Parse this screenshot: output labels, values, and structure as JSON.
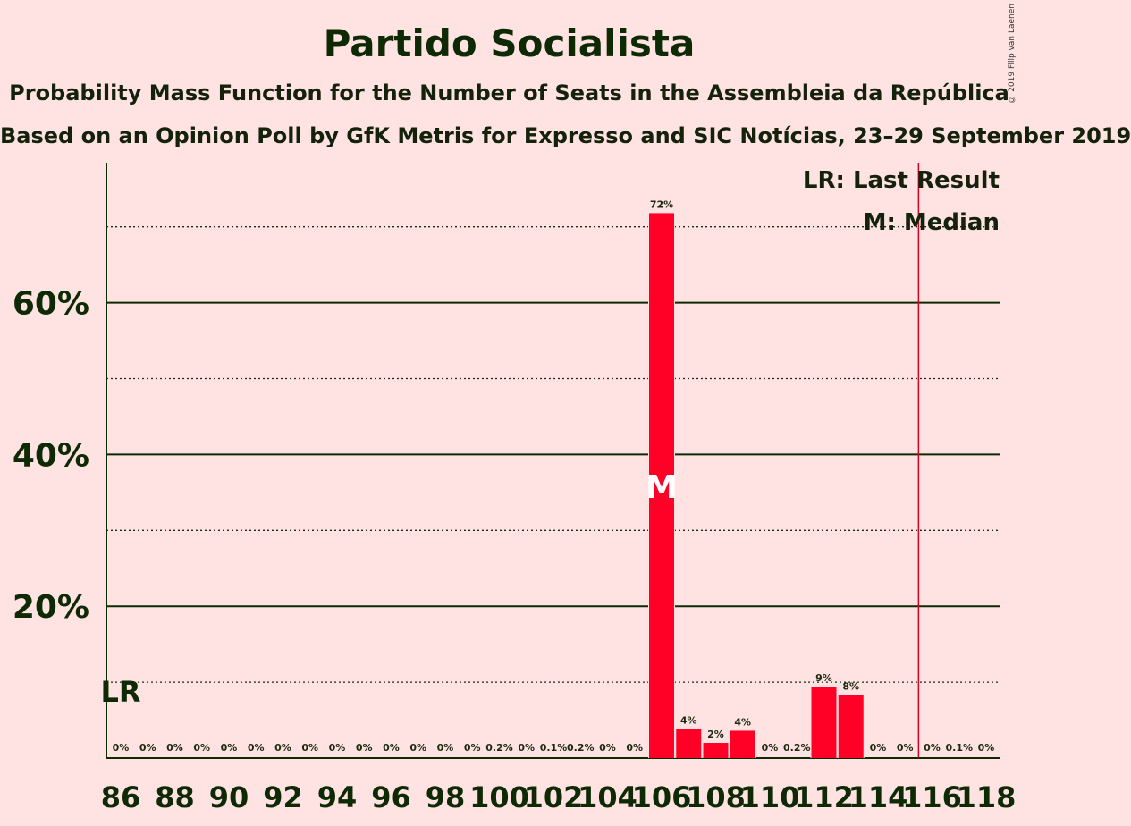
{
  "title": "Partido Socialista",
  "subtitle": "Probability Mass Function for the Number of Seats in the Assembleia da República",
  "subtitle2": "Based on an Opinion Poll by GfK Metris for Expresso and SIC Notícias, 23–29 September 2019",
  "copyright": "© 2019 Filip van Laenen",
  "legend": {
    "last_result": "LR: Last Result",
    "median": "M: Median"
  },
  "markers": {
    "lr_label": "LR",
    "median_label": "M"
  },
  "colors": {
    "background": "#FFE2E2",
    "bar": "#FF0026",
    "text": "#1B2B10",
    "lr_line": "#D4001F"
  },
  "chart_data": {
    "type": "bar",
    "x": [
      86,
      87,
      88,
      89,
      90,
      91,
      92,
      93,
      94,
      95,
      96,
      97,
      98,
      99,
      100,
      101,
      102,
      103,
      104,
      105,
      106,
      107,
      108,
      109,
      110,
      111,
      112,
      113,
      114,
      115,
      116,
      117,
      118
    ],
    "values": [
      0,
      0,
      0,
      0,
      0,
      0,
      0,
      0,
      0,
      0,
      0,
      0,
      0,
      0,
      0.2,
      0,
      0.1,
      0.2,
      0,
      0,
      72,
      4,
      2,
      4,
      0,
      0.2,
      9,
      8,
      0,
      0,
      0,
      0.1,
      0
    ],
    "labels": [
      "0%",
      "0%",
      "0%",
      "0%",
      "0%",
      "0%",
      "0%",
      "0%",
      "0%",
      "0%",
      "0%",
      "0%",
      "0%",
      "0%",
      "0.2%",
      "0%",
      "0.1%",
      "0.2%",
      "0%",
      "0%",
      "72%",
      "4%",
      "2%",
      "4%",
      "0%",
      "0.2%",
      "9%",
      "8%",
      "0%",
      "0%",
      "0%",
      "0.1%",
      "0%"
    ],
    "bar_heights": [
      0,
      0,
      0,
      0,
      0,
      0,
      0,
      0,
      0,
      0,
      0,
      0,
      0,
      0,
      0,
      0,
      0,
      0,
      0,
      0,
      71.8,
      3.8,
      2.0,
      3.6,
      0,
      0,
      9.4,
      8.3,
      0,
      0,
      0,
      0,
      0
    ],
    "x_tick_labels": [
      "86",
      "88",
      "90",
      "92",
      "94",
      "96",
      "98",
      "100",
      "102",
      "104",
      "106",
      "108",
      "110",
      "112",
      "114",
      "116",
      "118"
    ],
    "y_tick_labels": [
      "20%",
      "40%",
      "60%"
    ],
    "ylim": [
      0,
      78
    ],
    "last_result": 86,
    "median": 106,
    "majority_line": 116,
    "grid": true,
    "legend_position": "top-right"
  }
}
